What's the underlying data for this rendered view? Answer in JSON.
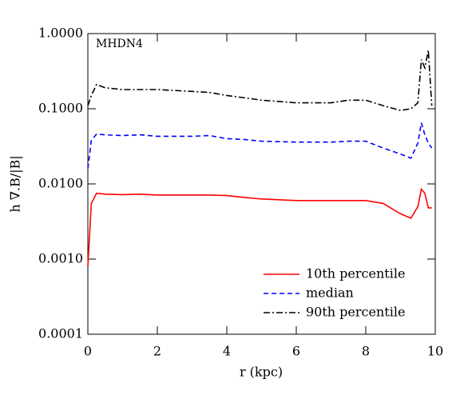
{
  "chart_data": {
    "type": "line",
    "annotation": "MHDN4",
    "x_label": "r (kpc)",
    "y_label": "h ∇.B/|B|",
    "log_y": true,
    "legend": "lower right",
    "xlim": [
      0,
      10
    ],
    "xticks": [
      0,
      2,
      4,
      6,
      8,
      10
    ],
    "ylim": [
      0.0001,
      1
    ],
    "yticks": [
      {
        "value": 0.0001,
        "label": "0.0001"
      },
      {
        "value": 0.001,
        "label": "0.0010"
      },
      {
        "value": 0.01,
        "label": "0.0100"
      },
      {
        "value": 0.1,
        "label": "0.1000"
      },
      {
        "value": 1,
        "label": "1.0000"
      }
    ],
    "x": [
      0,
      0.1,
      0.25,
      0.5,
      1,
      1.5,
      2,
      3,
      3.5,
      4,
      4.5,
      5,
      6,
      7,
      7.5,
      8,
      8.5,
      9,
      9.3,
      9.5,
      9.6,
      9.7,
      9.8,
      9.9
    ],
    "series": [
      {
        "name": "10th percentile",
        "color": "#ff0000",
        "line_style": "solid",
        "values": [
          0.0008,
          0.0055,
          0.0075,
          0.0073,
          0.0072,
          0.0073,
          0.0071,
          0.0071,
          0.0071,
          0.007,
          0.0066,
          0.0063,
          0.006,
          0.006,
          0.006,
          0.006,
          0.0055,
          0.004,
          0.0035,
          0.005,
          0.0085,
          0.0075,
          0.0048,
          0.0048
        ]
      },
      {
        "name": "median",
        "color": "#0000ff",
        "line_style": "dashed",
        "values": [
          0.016,
          0.038,
          0.046,
          0.045,
          0.044,
          0.045,
          0.043,
          0.043,
          0.044,
          0.04,
          0.039,
          0.037,
          0.036,
          0.036,
          0.037,
          0.037,
          0.03,
          0.025,
          0.022,
          0.035,
          0.065,
          0.045,
          0.035,
          0.03
        ]
      },
      {
        "name": "90th percentile",
        "color": "#000000",
        "line_style": "dashdot",
        "values": [
          0.11,
          0.15,
          0.21,
          0.19,
          0.18,
          0.18,
          0.18,
          0.17,
          0.165,
          0.15,
          0.14,
          0.13,
          0.12,
          0.12,
          0.13,
          0.13,
          0.11,
          0.095,
          0.1,
          0.12,
          0.45,
          0.35,
          0.6,
          0.11
        ]
      }
    ]
  }
}
